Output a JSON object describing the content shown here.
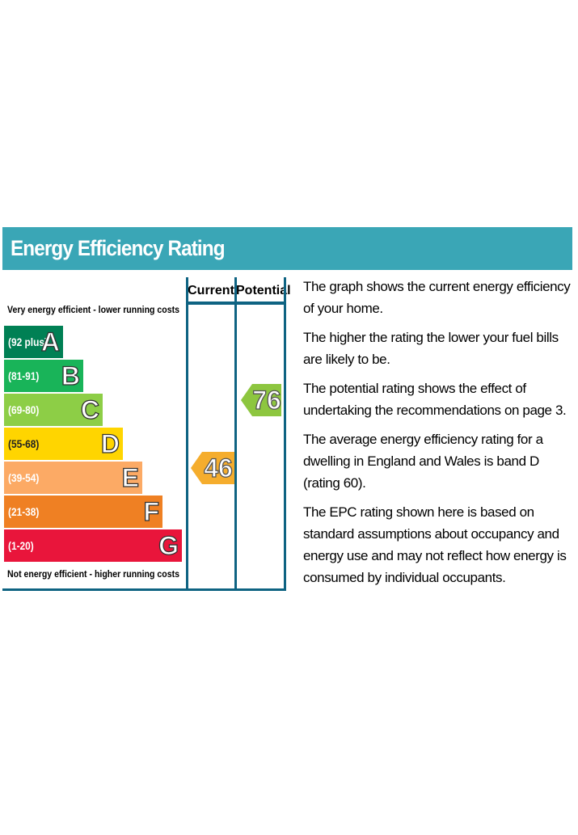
{
  "header": {
    "title": "Energy Efficiency Rating"
  },
  "columns": {
    "current": "Current",
    "potential": "Potential"
  },
  "captions": {
    "top": "Very energy efficient - lower running costs",
    "bottom": "Not energy efficient - higher running costs"
  },
  "chart_data": {
    "type": "bar",
    "bands": [
      {
        "letter": "A",
        "range": "(92 plus)",
        "color": "#008054"
      },
      {
        "letter": "B",
        "range": "(81-91)",
        "color": "#19b459"
      },
      {
        "letter": "C",
        "range": "(69-80)",
        "color": "#8dce46"
      },
      {
        "letter": "D",
        "range": "(55-68)",
        "color": "#ffd500"
      },
      {
        "letter": "E",
        "range": "(39-54)",
        "color": "#fcaa65"
      },
      {
        "letter": "F",
        "range": "(21-38)",
        "color": "#ef8023"
      },
      {
        "letter": "G",
        "range": "(1-20)",
        "color": "#e9153b"
      }
    ],
    "current": {
      "value": 46,
      "band": "E",
      "color": "#f5ad2d"
    },
    "potential": {
      "value": 76,
      "band": "C",
      "color": "#8dc63f"
    }
  },
  "description": [
    "The graph shows the current energy efficiency of your home.",
    "The higher the rating the lower your fuel bills are likely to be.",
    "The potential rating shows the effect of undertaking the recommendations on page 3.",
    "The average energy efficiency rating for a dwelling in England and Wales is band D (rating 60).",
    "The EPC rating shown here is based on standard assumptions about occupancy and energy use and may not reflect how energy is consumed by individual occupants."
  ]
}
